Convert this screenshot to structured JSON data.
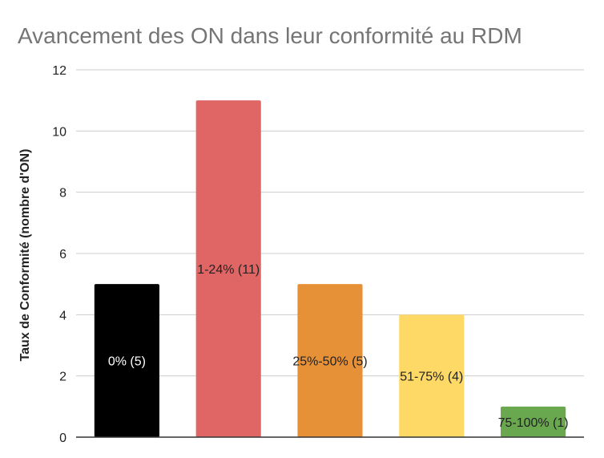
{
  "chart_data": {
    "type": "bar",
    "title": "Avancement des ON dans leur conformité au RDM",
    "xlabel": "",
    "ylabel": "Taux de Conformité (nombre d'ON)",
    "ylim": [
      0,
      12
    ],
    "yticks": [
      0,
      2,
      4,
      6,
      8,
      10,
      12
    ],
    "grid": true,
    "legend": "none",
    "categories": [
      "0%",
      "1-24%",
      "25%-50%",
      "51-75%",
      "75-100%"
    ],
    "values": [
      5,
      11,
      5,
      4,
      1
    ],
    "data_labels": [
      "0% (5)",
      "1-24% (11)",
      "25%-50% (5)",
      "51-75% (4)",
      "75-100% (1)"
    ],
    "colors": [
      "#000000",
      "#e06666",
      "#e69138",
      "#ffd966",
      "#6aa84f"
    ]
  }
}
